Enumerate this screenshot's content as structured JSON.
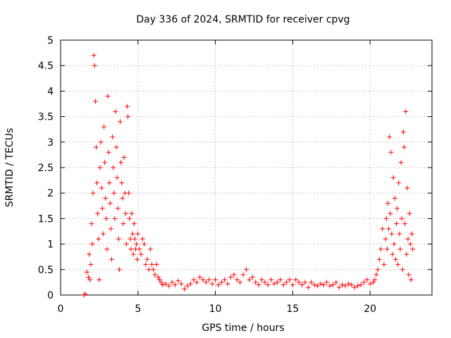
{
  "chart_data": {
    "type": "scatter",
    "title": "Day 336 of 2024, SRMTID for receiver cpvg",
    "xlabel": "GPS time / hours",
    "ylabel": "SRMTID / TECUs",
    "xlim": [
      0,
      24
    ],
    "ylim": [
      0,
      5
    ],
    "xticks": [
      0,
      5,
      10,
      15,
      20
    ],
    "xtick_labels": [
      "0",
      "5",
      "10",
      "15",
      "20"
    ],
    "yticks": [
      0,
      0.5,
      1,
      1.5,
      2,
      2.5,
      3,
      3.5,
      4,
      4.5,
      5
    ],
    "ytick_labels": [
      "0",
      "0.5",
      "1",
      "1.5",
      "2",
      "2.5",
      "3",
      "3.5",
      "4",
      "4.5",
      "5"
    ],
    "grid": true,
    "marker": "+",
    "marker_color": "#ff0000",
    "series": [
      {
        "name": "SRMTID",
        "x": [
          1.5,
          1.6,
          1.7,
          1.8,
          1.85,
          1.9,
          1.95,
          2.0,
          2.05,
          2.1,
          2.15,
          2.2,
          2.25,
          2.3,
          2.35,
          2.4,
          2.45,
          2.5,
          2.55,
          2.6,
          2.65,
          2.7,
          2.75,
          2.8,
          2.85,
          2.9,
          2.95,
          3.0,
          3.05,
          3.1,
          3.15,
          3.2,
          3.25,
          3.3,
          3.35,
          3.4,
          3.45,
          3.5,
          3.55,
          3.6,
          3.65,
          3.7,
          3.75,
          3.8,
          3.85,
          3.9,
          3.95,
          4.0,
          4.05,
          4.1,
          4.15,
          4.2,
          4.25,
          4.3,
          4.35,
          4.4,
          4.45,
          4.5,
          4.55,
          4.6,
          4.65,
          4.7,
          4.75,
          4.8,
          4.85,
          4.9,
          4.95,
          5.0,
          5.1,
          5.2,
          5.3,
          5.4,
          5.5,
          5.6,
          5.7,
          5.8,
          5.9,
          6.0,
          6.1,
          6.2,
          6.3,
          6.4,
          6.5,
          6.6,
          6.8,
          7.0,
          7.2,
          7.4,
          7.6,
          7.8,
          8.0,
          8.2,
          8.4,
          8.6,
          8.8,
          9.0,
          9.2,
          9.4,
          9.6,
          9.8,
          10.0,
          10.2,
          10.4,
          10.6,
          10.8,
          11.0,
          11.2,
          11.4,
          11.6,
          11.8,
          12.0,
          12.2,
          12.4,
          12.6,
          12.8,
          13.0,
          13.2,
          13.4,
          13.6,
          13.8,
          14.0,
          14.2,
          14.4,
          14.6,
          14.8,
          15.0,
          15.2,
          15.4,
          15.6,
          15.8,
          16.0,
          16.2,
          16.4,
          16.6,
          16.8,
          17.0,
          17.2,
          17.4,
          17.6,
          17.8,
          18.0,
          18.2,
          18.4,
          18.6,
          18.8,
          19.0,
          19.2,
          19.4,
          19.6,
          19.8,
          20.0,
          20.2,
          20.3,
          20.4,
          20.5,
          20.6,
          20.7,
          20.8,
          20.9,
          21.0,
          21.05,
          21.1,
          21.15,
          21.2,
          21.25,
          21.3,
          21.35,
          21.4,
          21.45,
          21.5,
          21.55,
          21.6,
          21.65,
          21.7,
          21.75,
          21.8,
          21.85,
          21.9,
          21.95,
          22.0,
          22.05,
          22.1,
          22.15,
          22.2,
          22.25,
          22.3,
          22.35,
          22.4,
          22.45,
          22.5,
          22.55,
          22.6,
          22.65,
          22.7,
          22.75
        ],
        "y": [
          0.0,
          0.02,
          0.45,
          0.35,
          0.8,
          0.3,
          0.6,
          1.4,
          1.0,
          2.0,
          4.7,
          4.5,
          3.8,
          2.9,
          2.2,
          1.6,
          1.1,
          0.3,
          2.5,
          3.0,
          2.1,
          1.7,
          1.2,
          3.3,
          2.6,
          1.9,
          1.5,
          0.9,
          3.9,
          2.8,
          2.2,
          1.8,
          1.3,
          0.7,
          3.1,
          2.5,
          2.0,
          1.5,
          3.6,
          2.9,
          2.3,
          1.7,
          1.1,
          0.5,
          3.4,
          2.6,
          2.2,
          1.9,
          1.4,
          2.7,
          2.0,
          1.6,
          1.0,
          3.7,
          3.5,
          2.0,
          1.5,
          1.1,
          0.9,
          1.6,
          1.2,
          0.8,
          1.4,
          1.1,
          0.9,
          1.0,
          0.7,
          1.2,
          0.9,
          0.8,
          1.1,
          1.0,
          0.6,
          0.7,
          0.5,
          0.9,
          0.6,
          0.5,
          0.4,
          0.6,
          0.35,
          0.3,
          0.25,
          0.2,
          0.22,
          0.18,
          0.25,
          0.2,
          0.28,
          0.22,
          0.12,
          0.18,
          0.22,
          0.3,
          0.25,
          0.35,
          0.3,
          0.25,
          0.3,
          0.22,
          0.3,
          0.2,
          0.25,
          0.3,
          0.22,
          0.35,
          0.4,
          0.3,
          0.25,
          0.4,
          0.5,
          0.3,
          0.35,
          0.25,
          0.2,
          0.3,
          0.25,
          0.2,
          0.3,
          0.22,
          0.25,
          0.3,
          0.2,
          0.25,
          0.3,
          0.2,
          0.3,
          0.25,
          0.2,
          0.25,
          0.15,
          0.25,
          0.2,
          0.18,
          0.22,
          0.2,
          0.25,
          0.18,
          0.2,
          0.25,
          0.15,
          0.2,
          0.18,
          0.22,
          0.2,
          0.15,
          0.18,
          0.2,
          0.25,
          0.3,
          0.22,
          0.25,
          0.3,
          0.4,
          0.5,
          0.7,
          0.9,
          1.3,
          0.6,
          1.1,
          1.5,
          0.9,
          1.8,
          1.3,
          3.1,
          1.6,
          2.8,
          1.2,
          0.8,
          2.3,
          1.0,
          1.9,
          0.7,
          1.4,
          1.7,
          0.6,
          2.2,
          1.2,
          0.9,
          2.6,
          1.5,
          0.5,
          3.2,
          2.9,
          1.4,
          3.6,
          0.8,
          2.1,
          1.1,
          0.4,
          1.6,
          1.0,
          0.3,
          1.2,
          0.9
        ]
      }
    ]
  }
}
